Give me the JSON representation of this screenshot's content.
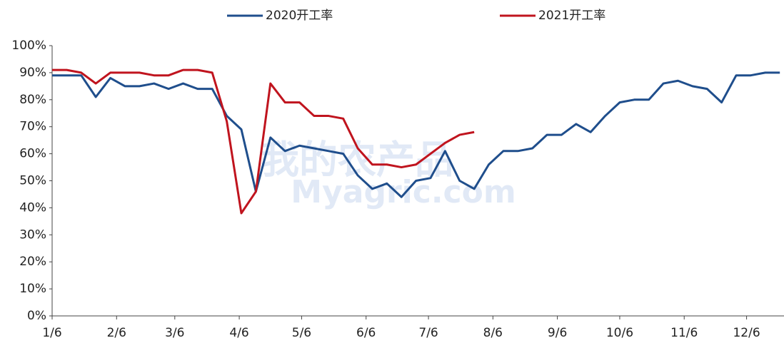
{
  "chart_data": {
    "type": "line",
    "watermark": [
      "我的农产品",
      "Myagric.com"
    ],
    "x": [
      0,
      7,
      14,
      21,
      28,
      35,
      42,
      49,
      56,
      63,
      70,
      77,
      84,
      91,
      98,
      105,
      112,
      119,
      126,
      133,
      140,
      147,
      154,
      161,
      168,
      175,
      182,
      189,
      196,
      203,
      210,
      217,
      224,
      231,
      238,
      245,
      252,
      259,
      266,
      273,
      280,
      287,
      294,
      301,
      308,
      315,
      322,
      329,
      336,
      343,
      350
    ],
    "series": [
      {
        "name": "2020开工率",
        "color": "#1f4e8c",
        "values": [
          89,
          89,
          89,
          81,
          88,
          85,
          85,
          86,
          84,
          86,
          84,
          84,
          74,
          69,
          46,
          66,
          61,
          63,
          62,
          61,
          60,
          52,
          47,
          49,
          44,
          50,
          51,
          61,
          50,
          47,
          56,
          61,
          61,
          62,
          67,
          67,
          71,
          68,
          74,
          79,
          80,
          80,
          86,
          87,
          85,
          84,
          79,
          89,
          89,
          90,
          90
        ]
      },
      {
        "name": "2021开工率",
        "color": "#c0141e",
        "values": [
          91,
          91,
          90,
          86,
          90,
          90,
          90,
          89,
          89,
          91,
          91,
          90,
          72,
          38,
          46,
          86,
          79,
          79,
          74,
          74,
          73,
          62,
          56,
          56,
          55,
          56,
          60,
          64,
          67,
          68,
          null,
          null,
          null,
          null,
          null,
          null,
          null,
          null,
          null,
          null,
          null,
          null,
          null,
          null,
          null,
          null,
          null,
          null,
          null,
          null,
          null
        ]
      }
    ],
    "xlim": [
      0,
      352
    ],
    "xticks": [
      {
        "value": 0,
        "label": "1/6"
      },
      {
        "value": 31,
        "label": "2/6"
      },
      {
        "value": 59,
        "label": "3/6"
      },
      {
        "value": 90,
        "label": "4/6"
      },
      {
        "value": 120,
        "label": "5/6"
      },
      {
        "value": 151,
        "label": "6/6"
      },
      {
        "value": 181,
        "label": "7/6"
      },
      {
        "value": 212,
        "label": "8/6"
      },
      {
        "value": 243,
        "label": "9/6"
      },
      {
        "value": 273,
        "label": "10/6"
      },
      {
        "value": 304,
        "label": "11/6"
      },
      {
        "value": 334,
        "label": "12/6"
      }
    ],
    "ylim": [
      0,
      100
    ],
    "yticks": [
      {
        "value": 0,
        "label": "0%"
      },
      {
        "value": 10,
        "label": "10%"
      },
      {
        "value": 20,
        "label": "20%"
      },
      {
        "value": 30,
        "label": "30%"
      },
      {
        "value": 40,
        "label": "40%"
      },
      {
        "value": 50,
        "label": "50%"
      },
      {
        "value": 60,
        "label": "60%"
      },
      {
        "value": 70,
        "label": "70%"
      },
      {
        "value": 80,
        "label": "80%"
      },
      {
        "value": 90,
        "label": "90%"
      },
      {
        "value": 100,
        "label": "100%"
      }
    ],
    "grid": false,
    "legend": "top"
  }
}
